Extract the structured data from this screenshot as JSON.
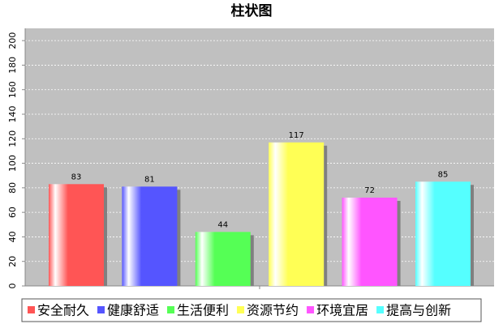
{
  "chart_data": {
    "type": "bar",
    "title": "柱状图",
    "categories": [
      null
    ],
    "series": [
      {
        "name": "安全耐久",
        "color": "#ff5555",
        "values": [
          83
        ]
      },
      {
        "name": "健康舒适",
        "color": "#5555ff",
        "values": [
          81
        ]
      },
      {
        "name": "生活便利",
        "color": "#55ff55",
        "values": [
          44
        ]
      },
      {
        "name": "资源节约",
        "color": "#ffff55",
        "values": [
          117
        ]
      },
      {
        "name": "环境宜居",
        "color": "#ff55ff",
        "values": [
          72
        ]
      },
      {
        "name": "提高与创新",
        "color": "#55ffff",
        "values": [
          85
        ]
      }
    ],
    "ylim": [
      0,
      210
    ],
    "yticks": [
      0,
      20,
      40,
      60,
      80,
      100,
      120,
      140,
      160,
      180,
      200
    ],
    "grid": true,
    "legend": "bottom"
  }
}
